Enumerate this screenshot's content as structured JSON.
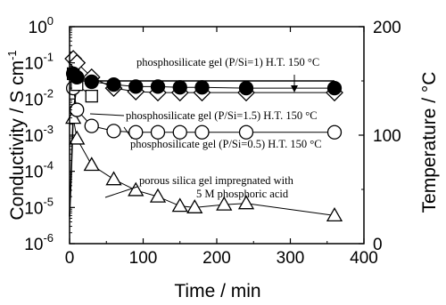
{
  "chart_data": {
    "type": "scatter",
    "xlabel": "Time / min",
    "ylabel_left": "Conductivity / S cm",
    "ylabel_left_superscript": "-1",
    "ylabel_right": "Temperature / °C",
    "x_ticks": [
      "0",
      "100",
      "200",
      "300",
      "400"
    ],
    "y_left_ticks": [
      {
        "base": "10",
        "exp": "0"
      },
      {
        "base": "10",
        "exp": "-1"
      },
      {
        "base": "10",
        "exp": "-2"
      },
      {
        "base": "10",
        "exp": "-3"
      },
      {
        "base": "10",
        "exp": "-4"
      },
      {
        "base": "10",
        "exp": "-5"
      },
      {
        "base": "10",
        "exp": "-6"
      }
    ],
    "y_right_ticks": [
      "200",
      "100",
      "0"
    ],
    "xlim": [
      0,
      400
    ],
    "ylim_left": [
      1e-06,
      1
    ],
    "y_left_scale": "log",
    "ylim_right": [
      0,
      200
    ],
    "grid": false,
    "annotations": {
      "p1": "phosphosilicate gel (P/Si=1) H.T. 150 °C",
      "p15": "phosphosilicate gel (P/Si=1.5) H.T. 150 °C",
      "p05": "phosphosilicate gel (P/Si=0.5) H.T. 150 °C",
      "silica_line1": "porous silica gel impregnated with",
      "silica_line2": "5 M phosphoric acid"
    },
    "series": [
      {
        "marker": "filled-circle",
        "x": [
          5,
          10,
          30,
          60,
          90,
          120,
          150,
          180,
          240,
          360
        ],
        "y": [
          0.05,
          0.04,
          0.03,
          0.025,
          0.022,
          0.022,
          0.021,
          0.021,
          0.02,
          0.02
        ]
      },
      {
        "marker": "diamond",
        "x": [
          5,
          10,
          30,
          60,
          90,
          120,
          150,
          180,
          240,
          360
        ],
        "y": [
          0.13,
          0.1,
          0.04,
          0.02,
          0.016,
          0.015,
          0.015,
          0.015,
          0.015,
          0.015
        ]
      },
      {
        "marker": "square",
        "x": [
          5,
          10,
          30
        ],
        "y": [
          0.05,
          0.025,
          0.012
        ]
      },
      {
        "marker": "open-circle",
        "x": [
          5,
          10,
          30,
          60,
          90,
          120,
          150,
          180,
          240,
          360
        ],
        "y": [
          0.02,
          0.005,
          0.0018,
          0.0013,
          0.0012,
          0.0012,
          0.0012,
          0.0012,
          0.0012,
          0.0012
        ]
      },
      {
        "marker": "triangle",
        "x": [
          5,
          10,
          30,
          60,
          90,
          120,
          150,
          170,
          210,
          240,
          360
        ],
        "y": [
          0.003,
          0.0008,
          0.00015,
          6e-05,
          3e-05,
          2e-05,
          1.1e-05,
          1e-05,
          1.2e-05,
          1.3e-05,
          6e-06
        ]
      }
    ],
    "temperature_curve": {
      "unit": "°C",
      "x": [
        0,
        2,
        5,
        10,
        15,
        20,
        30,
        60,
        120,
        240,
        360
      ],
      "y": [
        25,
        60,
        120,
        148,
        150,
        150,
        150,
        150,
        150,
        150,
        150
      ]
    }
  }
}
